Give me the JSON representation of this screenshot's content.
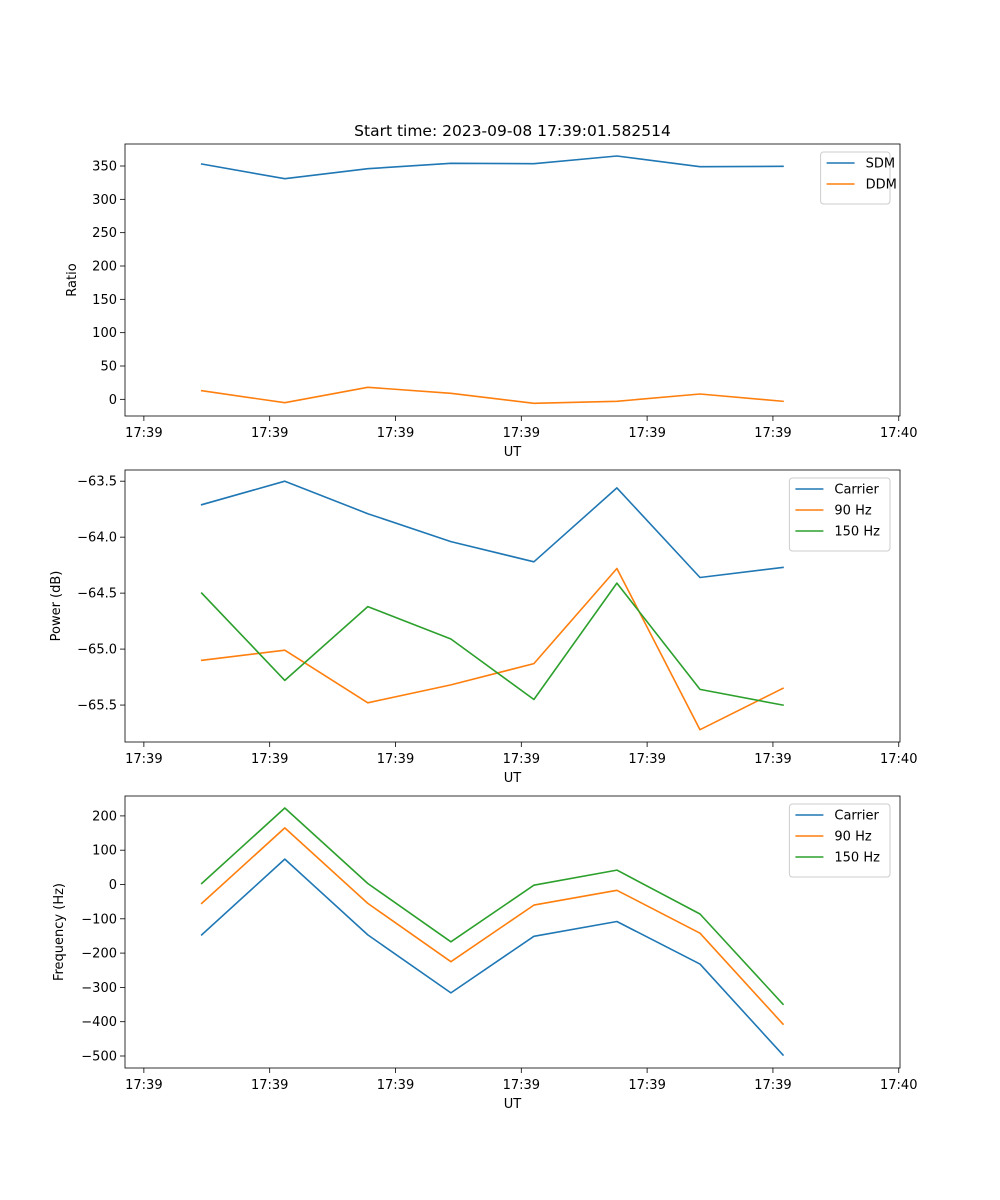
{
  "chart_data": [
    {
      "type": "line",
      "title": "Start time: 2023-09-08 17:39:01.582514",
      "xlabel": "UT",
      "ylabel": "Ratio",
      "ylim": [
        -25,
        383
      ],
      "yticks": [
        0,
        50,
        100,
        150,
        200,
        250,
        300,
        350
      ],
      "xticks": [
        0,
        1,
        2,
        3,
        4,
        5,
        6
      ],
      "xlim": [
        -0.15,
        6.01
      ],
      "xtick_labels": [
        "17:39",
        "17:39",
        "17:39",
        "17:39",
        "17:39",
        "17:39",
        "17:40"
      ],
      "x": [
        0.46,
        1.12,
        1.78,
        2.44,
        3.1,
        3.76,
        4.42,
        5.08
      ],
      "series": [
        {
          "name": "SDM",
          "color": "#1f77b4",
          "values": [
            353,
            331,
            346,
            354,
            353.5,
            365,
            349,
            349.5
          ]
        },
        {
          "name": "DDM",
          "color": "#ff7f0e",
          "values": [
            13,
            -5,
            18,
            9,
            -6,
            -3,
            8,
            -3
          ]
        }
      ],
      "legend": "top-right"
    },
    {
      "type": "line",
      "title": "",
      "xlabel": "UT",
      "ylabel": "Power (dB)",
      "ylim": [
        -65.83,
        -63.4
      ],
      "yticks": [
        -65.5,
        -65.0,
        -64.5,
        -64.0,
        -63.5
      ],
      "ytick_labels": [
        "−65.5",
        "−65.0",
        "−64.5",
        "−64.0",
        "−63.5"
      ],
      "xticks": [
        0,
        1,
        2,
        3,
        4,
        5,
        6
      ],
      "xlim": [
        -0.15,
        6.01
      ],
      "xtick_labels": [
        "17:39",
        "17:39",
        "17:39",
        "17:39",
        "17:39",
        "17:39",
        "17:40"
      ],
      "x": [
        0.46,
        1.12,
        1.78,
        2.44,
        3.1,
        3.76,
        4.42,
        5.08
      ],
      "series": [
        {
          "name": "Carrier",
          "color": "#1f77b4",
          "values": [
            -63.71,
            -63.5,
            -63.79,
            -64.04,
            -64.22,
            -63.56,
            -64.36,
            -64.27
          ]
        },
        {
          "name": "90 Hz",
          "color": "#ff7f0e",
          "values": [
            -65.1,
            -65.01,
            -65.48,
            -65.32,
            -65.13,
            -64.28,
            -65.72,
            -65.35
          ]
        },
        {
          "name": "150 Hz",
          "color": "#2ca02c",
          "values": [
            -64.5,
            -65.28,
            -64.62,
            -64.91,
            -65.45,
            -64.41,
            -65.36,
            -65.5
          ]
        }
      ],
      "legend": "top-right"
    },
    {
      "type": "line",
      "title": "",
      "xlabel": "UT",
      "ylabel": "Frequency (Hz)",
      "ylim": [
        -535,
        258
      ],
      "yticks": [
        -500,
        -400,
        -300,
        -200,
        -100,
        0,
        100,
        200
      ],
      "ytick_labels": [
        "−500",
        "−400",
        "−300",
        "−200",
        "−100",
        "0",
        "100",
        "200"
      ],
      "xticks": [
        0,
        1,
        2,
        3,
        4,
        5,
        6
      ],
      "xlim": [
        -0.15,
        6.01
      ],
      "xtick_labels": [
        "17:39",
        "17:39",
        "17:39",
        "17:39",
        "17:39",
        "17:39",
        "17:40"
      ],
      "x": [
        0.46,
        1.12,
        1.78,
        2.44,
        3.1,
        3.76,
        4.42,
        5.08
      ],
      "series": [
        {
          "name": "Carrier",
          "color": "#1f77b4",
          "values": [
            -147,
            74,
            -147,
            -316,
            -151,
            -108,
            -232,
            -497
          ]
        },
        {
          "name": "90 Hz",
          "color": "#ff7f0e",
          "values": [
            -55,
            165,
            -55,
            -225,
            -60,
            -17,
            -142,
            -407
          ]
        },
        {
          "name": "150 Hz",
          "color": "#2ca02c",
          "values": [
            3,
            223,
            3,
            -167,
            -2,
            42,
            -86,
            -349
          ]
        }
      ],
      "legend": "top-right"
    }
  ]
}
